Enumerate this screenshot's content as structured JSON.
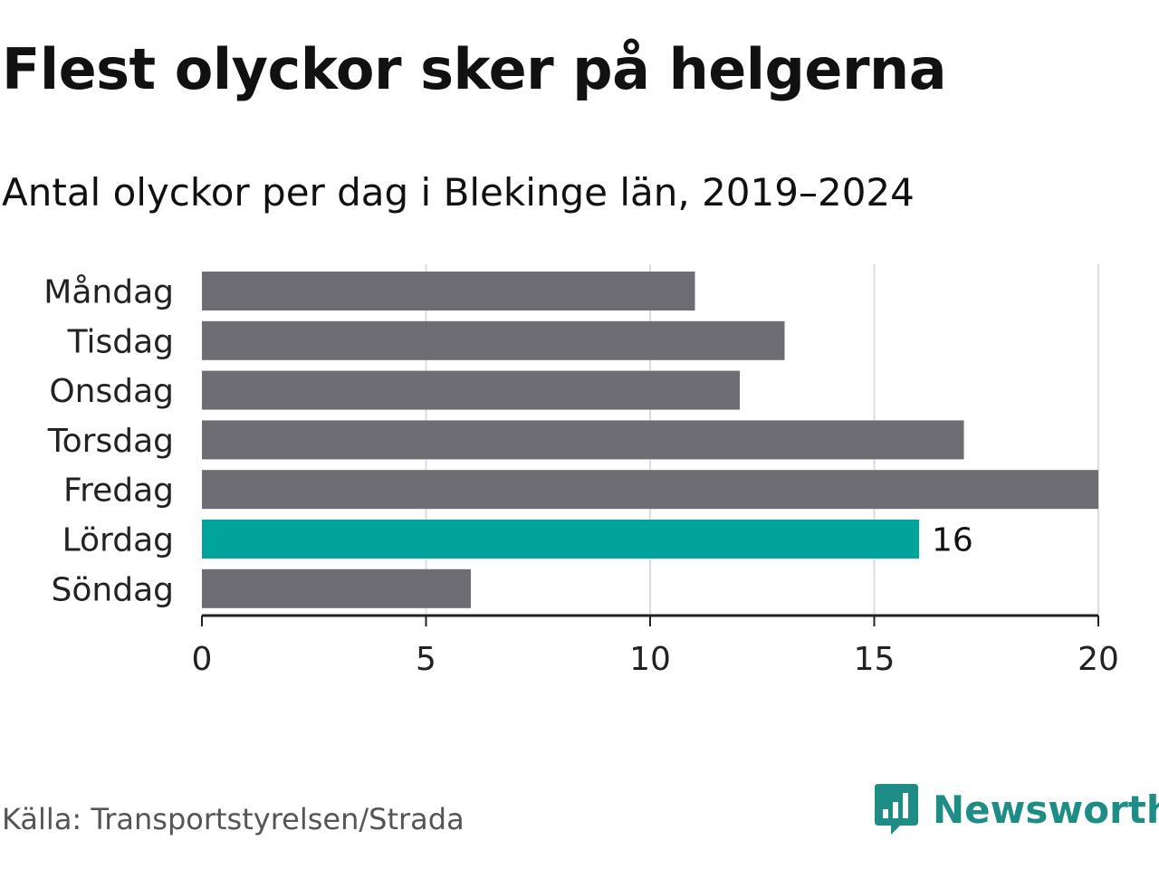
{
  "header": {
    "title": "Flest olyckor sker på helgerna",
    "subtitle": "Antal olyckor per dag i Blekinge län, 2019–2024"
  },
  "footer": {
    "source": "Källa: Transportstyrelsen/Strada",
    "brand": "Newsworthy",
    "brand_icon": "newsworthy-logo-icon"
  },
  "colors": {
    "bar": "#6e6d73",
    "highlight": "#00a49a",
    "axis": "#222222",
    "grid": "#dddddd",
    "brand": "#1e8d86"
  },
  "chart_data": {
    "type": "bar",
    "orientation": "horizontal",
    "categories": [
      "Måndag",
      "Tisdag",
      "Onsdag",
      "Torsdag",
      "Fredag",
      "Lördag",
      "Söndag"
    ],
    "values": [
      11,
      13,
      12,
      17,
      20,
      16,
      6
    ],
    "highlight_index": 5,
    "data_labels": [
      {
        "index": 5,
        "text": "16"
      }
    ],
    "xlim": [
      0,
      20
    ],
    "xticks": [
      0,
      5,
      10,
      15,
      20
    ],
    "grid": true
  }
}
